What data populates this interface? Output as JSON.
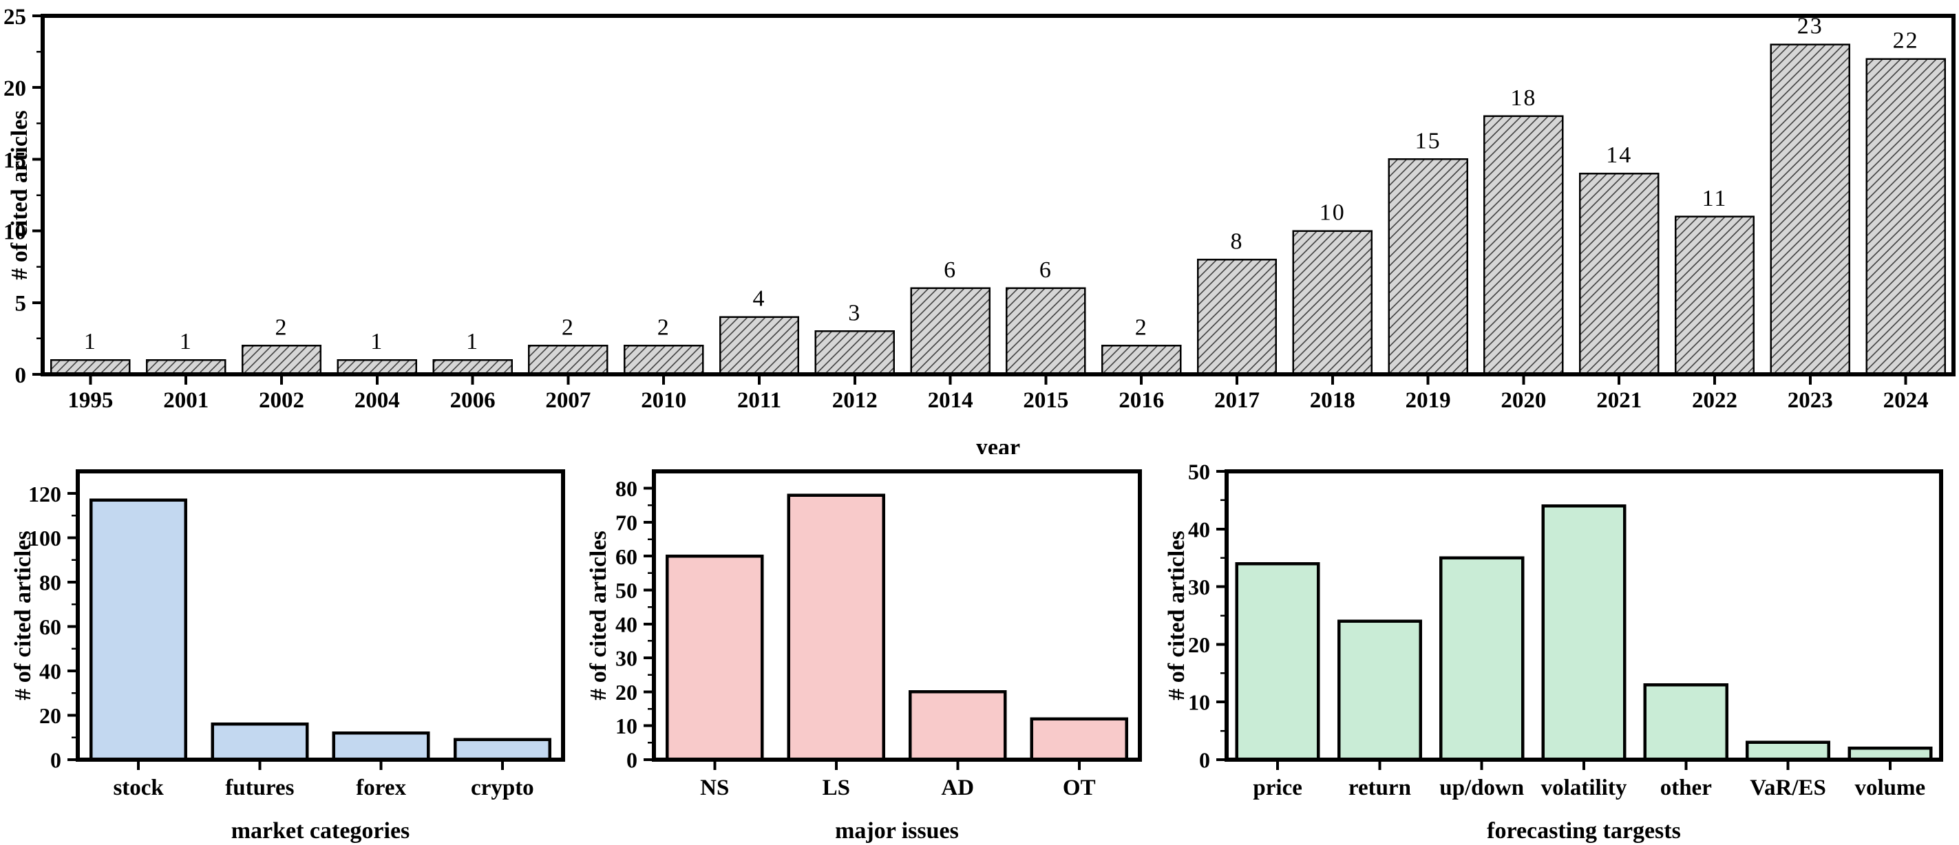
{
  "figure": {
    "background": "#ffffff",
    "axis_color": "#000000",
    "hatch_fill": "#d6d6d6",
    "hatch_line_color": "#3f3f3f"
  },
  "chart_data": [
    {
      "id": "yearly",
      "type": "bar",
      "title": "",
      "xlabel": "year",
      "ylabel": "# of cited articles",
      "categories": [
        "1995",
        "2001",
        "2002",
        "2004",
        "2006",
        "2007",
        "2010",
        "2011",
        "2012",
        "2014",
        "2015",
        "2016",
        "2017",
        "2018",
        "2019",
        "2020",
        "2021",
        "2022",
        "2023",
        "2024"
      ],
      "values": [
        1,
        1,
        2,
        1,
        1,
        2,
        2,
        4,
        3,
        6,
        6,
        2,
        8,
        10,
        15,
        18,
        14,
        11,
        23,
        22
      ],
      "yticks": [
        0,
        5,
        10,
        15,
        20,
        25
      ],
      "ylim": [
        0,
        25
      ],
      "minor_step": 2.5,
      "bar_style": "hatched",
      "bar_fill": "#d6d6d6",
      "show_value_labels": true,
      "grid": false,
      "legend": "none"
    },
    {
      "id": "market",
      "type": "bar",
      "title": "",
      "xlabel": "market categories",
      "ylabel": "# of cited articles",
      "categories": [
        "stock",
        "futures",
        "forex",
        "crypto"
      ],
      "values": [
        117,
        16,
        12,
        9
      ],
      "yticks": [
        0,
        20,
        40,
        60,
        80,
        100,
        120
      ],
      "ylim": [
        0,
        130
      ],
      "minor_step": 10,
      "bar_style": "solid",
      "bar_fill": "#c3d8f0",
      "show_value_labels": false,
      "grid": false,
      "legend": "none"
    },
    {
      "id": "issues",
      "type": "bar",
      "title": "",
      "xlabel": "major issues",
      "ylabel": "# of cited articles",
      "categories": [
        "NS",
        "LS",
        "AD",
        "OT"
      ],
      "values": [
        60,
        78,
        20,
        12
      ],
      "yticks": [
        0,
        10,
        20,
        30,
        40,
        50,
        60,
        70,
        80
      ],
      "ylim": [
        0,
        85
      ],
      "minor_step": 5,
      "bar_style": "solid",
      "bar_fill": "#f8caca",
      "show_value_labels": false,
      "grid": false,
      "legend": "none"
    },
    {
      "id": "targets",
      "type": "bar",
      "title": "",
      "xlabel": "forecasting targests",
      "ylabel": "# of cited articles",
      "categories": [
        "price",
        "return",
        "up/down",
        "volatility",
        "other",
        "VaR/ES",
        "volume"
      ],
      "values": [
        34,
        24,
        35,
        44,
        13,
        3,
        2
      ],
      "yticks": [
        0,
        10,
        20,
        30,
        40,
        50
      ],
      "ylim": [
        0,
        50
      ],
      "minor_step": 5,
      "bar_style": "solid",
      "bar_fill": "#c9ecd6",
      "show_value_labels": false,
      "grid": false,
      "legend": "none"
    }
  ]
}
